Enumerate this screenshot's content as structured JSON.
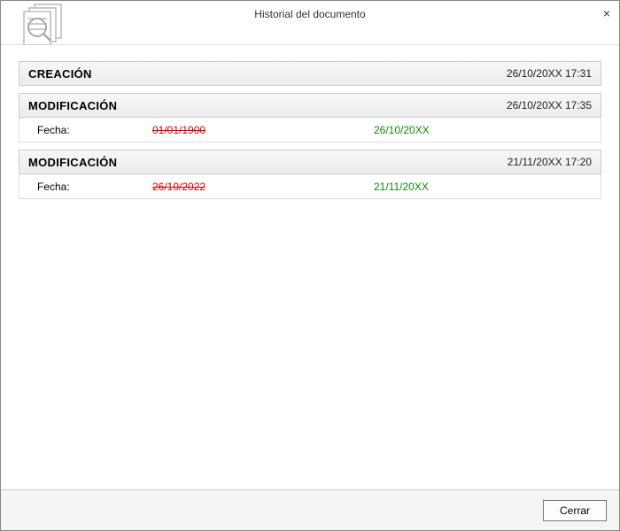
{
  "window": {
    "title": "Historial del documento",
    "close_label": "×"
  },
  "sections": [
    {
      "title": "CREACIÓN",
      "timestamp": "26/10/20XX 17:31",
      "changes": []
    },
    {
      "title": "MODIFICACIÓN",
      "timestamp": "26/10/20XX 17:35",
      "changes": [
        {
          "field": "Fecha:",
          "old": "01/01/1900",
          "new": "26/10/20XX"
        }
      ]
    },
    {
      "title": "MODIFICACIÓN",
      "timestamp": "21/11/20XX 17:20",
      "changes": [
        {
          "field": "Fecha:",
          "old": "26/10/2022",
          "new": "21/11/20XX"
        }
      ]
    }
  ],
  "footer": {
    "close_button": "Cerrar"
  },
  "colors": {
    "old_value": "#d60000",
    "new_value": "#0a8a0a",
    "header_bg_top": "#f7f7f7",
    "header_bg_bottom": "#ececec",
    "border": "#cccccc"
  }
}
